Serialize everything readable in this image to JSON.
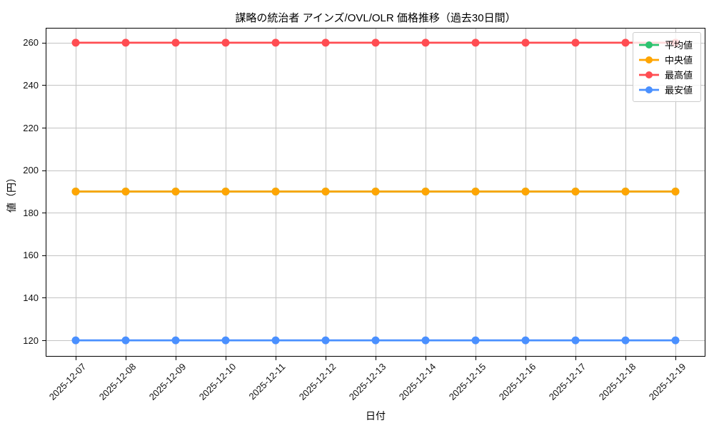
{
  "chart_data": {
    "type": "line",
    "title": "謀略の統治者 アインズ/OVL/OLR 価格推移（過去30日間）",
    "xlabel": "日付",
    "ylabel": "値（円）",
    "categories": [
      "2025-12-07",
      "2025-12-08",
      "2025-12-09",
      "2025-12-10",
      "2025-12-11",
      "2025-12-12",
      "2025-12-13",
      "2025-12-14",
      "2025-12-15",
      "2025-12-16",
      "2025-12-17",
      "2025-12-18",
      "2025-12-19"
    ],
    "series": [
      {
        "name": "平均値",
        "color": "#2dc26e",
        "values": [
          190,
          190,
          190,
          190,
          190,
          190,
          190,
          190,
          190,
          190,
          190,
          190,
          190
        ]
      },
      {
        "name": "中央値",
        "color": "#ffa502",
        "values": [
          190,
          190,
          190,
          190,
          190,
          190,
          190,
          190,
          190,
          190,
          190,
          190,
          190
        ]
      },
      {
        "name": "最高値",
        "color": "#ff4d52",
        "values": [
          260,
          260,
          260,
          260,
          260,
          260,
          260,
          260,
          260,
          260,
          260,
          260,
          260
        ]
      },
      {
        "name": "最安値",
        "color": "#4a90ff",
        "values": [
          120,
          120,
          120,
          120,
          120,
          120,
          120,
          120,
          120,
          120,
          120,
          120,
          120
        ]
      }
    ],
    "yticks": [
      120,
      140,
      160,
      180,
      200,
      220,
      240,
      260
    ],
    "ylim": [
      112.3,
      267.0
    ],
    "grid": true,
    "grid_color": "#c3c3c3",
    "frame_color": "#000000",
    "legend_position": "upper right"
  }
}
